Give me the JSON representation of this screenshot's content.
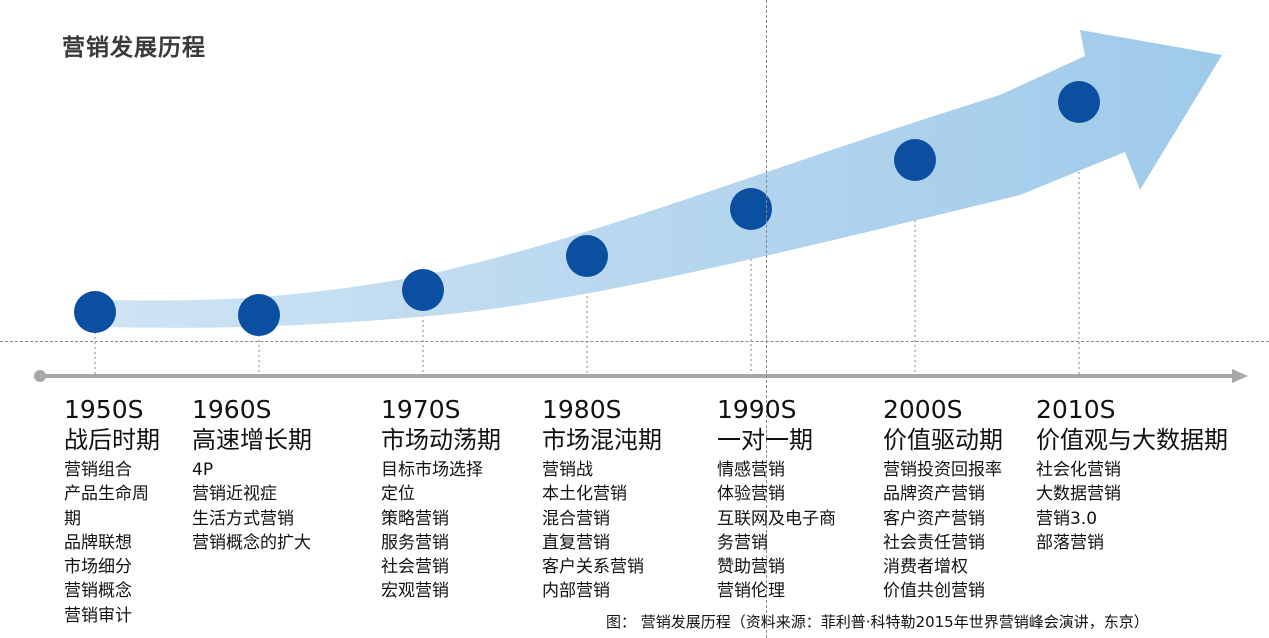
{
  "title": "营销发展历程",
  "eras": [
    {
      "decade": "1950S",
      "name": "战后时期",
      "items": [
        "营销组合",
        "产品生命周",
        "期",
        "品牌联想",
        "市场细分",
        "营销概念",
        "营销审计"
      ]
    },
    {
      "decade": "1960S",
      "name": "高速增长期",
      "items": [
        "4P",
        "营销近视症",
        "生活方式营销",
        "营销概念的扩大"
      ]
    },
    {
      "decade": "1970S",
      "name": "市场动荡期",
      "items": [
        "目标市场选择",
        "定位",
        "策略营销",
        "服务营销",
        "社会营销",
        "宏观营销"
      ]
    },
    {
      "decade": "1980S",
      "name": "市场混沌期",
      "items": [
        "营销战",
        "本土化营销",
        "混合营销",
        "直复营销",
        "客户关系营销",
        "内部营销"
      ]
    },
    {
      "decade": "1990S",
      "name": "一对一期",
      "items": [
        "情感营销",
        "体验营销",
        "互联网及电子商",
        "务营销",
        "赞助营销",
        "营销伦理"
      ]
    },
    {
      "decade": "2000S",
      "name": "价值驱动期",
      "items": [
        "营销投资回报率",
        "品牌资产营销",
        "客户资产营销",
        "社会责任营销",
        "消费者增权",
        "价值共创营销"
      ]
    },
    {
      "decade": "2010S",
      "name": "价值观与大数据期",
      "items": [
        "社会化营销",
        "大数据营销",
        "营销3.0",
        "部落营销"
      ]
    }
  ],
  "caption": "图： 营销发展历程（资料来源：菲利普·科特勒2015年世界营销峰会演讲，东京）",
  "colors": {
    "arrow": "#a9cfeb",
    "node": "#0b4fa0",
    "axis": "#a8a8a8"
  }
}
